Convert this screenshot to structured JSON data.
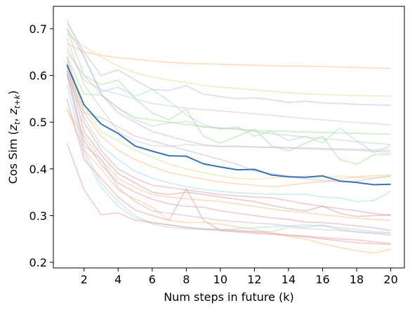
{
  "chart_data": {
    "type": "line",
    "xlabel": "Num steps in future (k)",
    "ylabel": "Cos Sim (",
    "ylabel_math": {
      "base1": "z",
      "sub1": "t",
      "sep": ", ",
      "base2": "z",
      "sub2": "t+k",
      "close": ")"
    },
    "xlim": [
      0.2,
      20.8
    ],
    "ylim": [
      0.188,
      0.748
    ],
    "xticks": [
      2,
      4,
      6,
      8,
      10,
      12,
      14,
      16,
      18,
      20
    ],
    "yticks": [
      0.2,
      0.3,
      0.4,
      0.5,
      0.6,
      0.7
    ],
    "x": [
      1,
      2,
      3,
      4,
      5,
      6,
      7,
      8,
      9,
      10,
      11,
      12,
      13,
      14,
      15,
      16,
      17,
      18,
      19,
      20
    ],
    "grid": false,
    "mean_series": {
      "color": "#3b75af",
      "values": [
        0.623,
        0.537,
        0.496,
        0.476,
        0.449,
        0.438,
        0.428,
        0.427,
        0.411,
        0.404,
        0.398,
        0.399,
        0.387,
        0.383,
        0.382,
        0.385,
        0.374,
        0.371,
        0.366,
        0.367
      ]
    },
    "background_series": [
      {
        "color": "#ffbb78",
        "values": [
          0.668,
          0.65,
          0.643,
          0.638,
          0.635,
          0.631,
          0.628,
          0.626,
          0.625,
          0.624,
          0.623,
          0.622,
          0.621,
          0.62,
          0.62,
          0.619,
          0.618,
          0.617,
          0.616,
          0.615
        ]
      },
      {
        "color": "#dbdb8d",
        "values": [
          0.69,
          0.662,
          0.64,
          0.62,
          0.606,
          0.597,
          0.59,
          0.585,
          0.579,
          0.575,
          0.572,
          0.569,
          0.566,
          0.563,
          0.561,
          0.559,
          0.558,
          0.557,
          0.556,
          0.556
        ]
      },
      {
        "color": "#c5b0d5",
        "values": [
          0.712,
          0.65,
          0.6,
          0.612,
          0.59,
          0.57,
          0.568,
          0.578,
          0.56,
          0.555,
          0.55,
          0.552,
          0.548,
          0.542,
          0.545,
          0.541,
          0.54,
          0.538,
          0.537,
          0.536
        ]
      },
      {
        "color": "#9edae5",
        "values": [
          0.72,
          0.64,
          0.565,
          0.575,
          0.555,
          0.57,
          0.545,
          0.515,
          0.495,
          0.485,
          0.49,
          0.47,
          0.48,
          0.46,
          0.47,
          0.455,
          0.488,
          0.46,
          0.435,
          0.45
        ]
      },
      {
        "color": "#98df8a",
        "values": [
          0.7,
          0.6,
          0.58,
          0.59,
          0.55,
          0.52,
          0.505,
          0.528,
          0.47,
          0.455,
          0.47,
          0.485,
          0.45,
          0.438,
          0.455,
          0.47,
          0.42,
          0.41,
          0.43,
          0.432
        ]
      },
      {
        "color": "#c7c7c7",
        "values": [
          0.66,
          0.59,
          0.57,
          0.56,
          0.55,
          0.54,
          0.535,
          0.53,
          0.527,
          0.524,
          0.521,
          0.518,
          0.515,
          0.511,
          0.508,
          0.505,
          0.502,
          0.499,
          0.497,
          0.494
        ]
      },
      {
        "color": "#98df8a",
        "values": [
          0.64,
          0.56,
          0.558,
          0.53,
          0.51,
          0.505,
          0.5,
          0.495,
          0.49,
          0.487,
          0.485,
          0.482,
          0.481,
          0.48,
          0.479,
          0.478,
          0.477,
          0.476,
          0.475,
          0.474
        ]
      },
      {
        "color": "#c7c7c7",
        "values": [
          0.65,
          0.6,
          0.56,
          0.53,
          0.505,
          0.492,
          0.498,
          0.502,
          0.49,
          0.487,
          0.486,
          0.48,
          0.475,
          0.472,
          0.468,
          0.465,
          0.462,
          0.458,
          0.455,
          0.452
        ]
      },
      {
        "color": "#c5b0d5",
        "values": [
          0.7,
          0.64,
          0.56,
          0.52,
          0.5,
          0.48,
          0.47,
          0.46,
          0.452,
          0.448,
          0.449,
          0.447,
          0.446,
          0.445,
          0.443,
          0.442,
          0.441,
          0.44,
          0.438,
          0.436
        ]
      },
      {
        "color": "#c7c7c7",
        "values": [
          0.68,
          0.58,
          0.53,
          0.48,
          0.46,
          0.45,
          0.448,
          0.452,
          0.45,
          0.448,
          0.447,
          0.447,
          0.446,
          0.446,
          0.445,
          0.444,
          0.443,
          0.442,
          0.441,
          0.44
        ]
      },
      {
        "color": "#c5b0d5",
        "values": [
          0.64,
          0.52,
          0.51,
          0.49,
          0.47,
          0.46,
          0.45,
          0.44,
          0.43,
          0.42,
          0.41,
          0.395,
          0.39,
          0.385,
          0.378,
          0.375,
          0.372,
          0.374,
          0.38,
          0.385
        ]
      },
      {
        "color": "#dbdb8d",
        "values": [
          0.62,
          0.53,
          0.48,
          0.46,
          0.44,
          0.425,
          0.41,
          0.4,
          0.392,
          0.385,
          0.38,
          0.378,
          0.38,
          0.384,
          0.382,
          0.38,
          0.385,
          0.382,
          0.38,
          0.383
        ]
      },
      {
        "color": "#ffbb78",
        "values": [
          0.61,
          0.52,
          0.47,
          0.44,
          0.42,
          0.405,
          0.392,
          0.385,
          0.378,
          0.372,
          0.368,
          0.365,
          0.362,
          0.365,
          0.37,
          0.372,
          0.378,
          0.383,
          0.385,
          0.387
        ]
      },
      {
        "color": "#9edae5",
        "values": [
          0.6,
          0.51,
          0.45,
          0.42,
          0.395,
          0.38,
          0.37,
          0.362,
          0.356,
          0.352,
          0.349,
          0.347,
          0.346,
          0.345,
          0.346,
          0.34,
          0.338,
          0.33,
          0.332,
          0.352
        ]
      },
      {
        "color": "#e7969c",
        "values": [
          0.63,
          0.5,
          0.44,
          0.4,
          0.38,
          0.365,
          0.36,
          0.355,
          0.35,
          0.345,
          0.342,
          0.34,
          0.338,
          0.332,
          0.325,
          0.32,
          0.315,
          0.31,
          0.305,
          0.3
        ]
      },
      {
        "color": "#c49c94",
        "values": [
          0.62,
          0.48,
          0.43,
          0.39,
          0.37,
          0.35,
          0.345,
          0.35,
          0.345,
          0.34,
          0.335,
          0.33,
          0.322,
          0.315,
          0.31,
          0.32,
          0.305,
          0.298,
          0.3,
          0.302
        ]
      },
      {
        "color": "#ffbb78",
        "values": [
          0.525,
          0.47,
          0.42,
          0.38,
          0.36,
          0.345,
          0.34,
          0.336,
          0.333,
          0.33,
          0.325,
          0.32,
          0.314,
          0.31,
          0.306,
          0.302,
          0.298,
          0.294,
          0.292,
          0.29
        ]
      },
      {
        "color": "#e7969c",
        "values": [
          0.605,
          0.46,
          0.41,
          0.37,
          0.35,
          0.335,
          0.325,
          0.32,
          0.318,
          0.31,
          0.305,
          0.3,
          0.295,
          0.292,
          0.286,
          0.285,
          0.282,
          0.278,
          0.274,
          0.268
        ]
      },
      {
        "color": "#c5b0d5",
        "values": [
          0.61,
          0.45,
          0.42,
          0.36,
          0.33,
          0.31,
          0.305,
          0.3,
          0.295,
          0.29,
          0.287,
          0.284,
          0.282,
          0.278,
          0.275,
          0.28,
          0.27,
          0.265,
          0.262,
          0.258
        ]
      },
      {
        "color": "#ffbb78",
        "values": [
          0.53,
          0.44,
          0.4,
          0.355,
          0.335,
          0.318,
          0.29,
          0.285,
          0.285,
          0.282,
          0.276,
          0.27,
          0.263,
          0.255,
          0.25,
          0.24,
          0.232,
          0.225,
          0.22,
          0.228
        ]
      },
      {
        "color": "#e7969c",
        "values": [
          0.55,
          0.42,
          0.38,
          0.34,
          0.312,
          0.3,
          0.29,
          0.358,
          0.29,
          0.268,
          0.265,
          0.262,
          0.26,
          0.258,
          0.256,
          0.253,
          0.25,
          0.248,
          0.244,
          0.24
        ]
      },
      {
        "color": "#9edae5",
        "values": [
          0.58,
          0.43,
          0.36,
          0.32,
          0.295,
          0.285,
          0.28,
          0.275,
          0.27,
          0.27,
          0.272,
          0.274,
          0.276,
          0.278,
          0.28,
          0.278,
          0.274,
          0.27,
          0.266,
          0.263
        ]
      },
      {
        "color": "#c7c7c7",
        "values": [
          0.6,
          0.44,
          0.37,
          0.33,
          0.3,
          0.282,
          0.275,
          0.272,
          0.27,
          0.268,
          0.267,
          0.266,
          0.266,
          0.275,
          0.272,
          0.27,
          0.268,
          0.265,
          0.263,
          0.262
        ]
      },
      {
        "color": "#e7969c",
        "values": [
          0.455,
          0.355,
          0.302,
          0.306,
          0.29,
          0.285,
          0.28,
          0.275,
          0.272,
          0.27,
          0.268,
          0.265,
          0.262,
          0.258,
          0.255,
          0.25,
          0.246,
          0.242,
          0.24,
          0.238
        ]
      }
    ]
  }
}
